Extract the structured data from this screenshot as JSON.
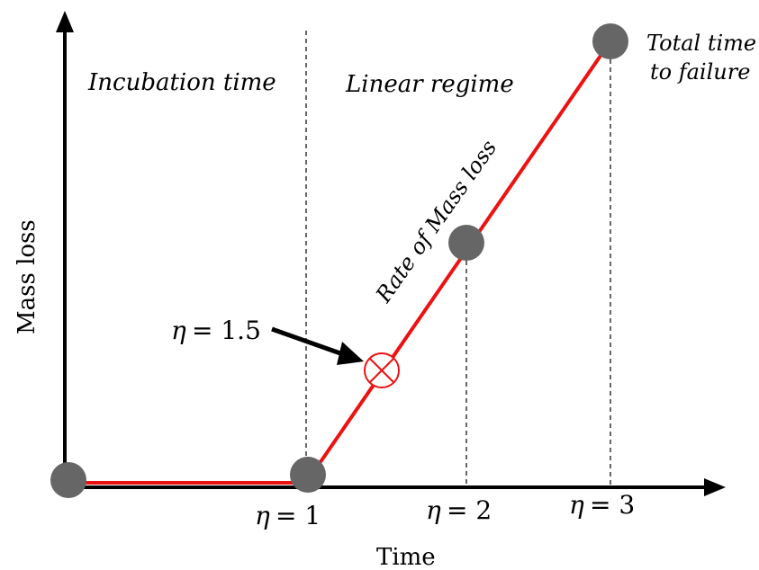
{
  "diagram": {
    "axes": {
      "x_label": "Time",
      "y_label": "Mass loss"
    },
    "regions": {
      "incubation": "Incubation time",
      "linear": "Linear regime",
      "total": [
        "Total time",
        "to failure"
      ]
    },
    "slope_label": "Rate of Mass loss",
    "eta_symbol": "η",
    "eta_ticks": [
      {
        "label": "= 1",
        "value": 1
      },
      {
        "label": "= 2",
        "value": 2
      },
      {
        "label": "= 3",
        "value": 3
      }
    ],
    "marker": {
      "symbol": "η",
      "label": "= 1.5",
      "value": 1.5
    },
    "colors": {
      "curve": "#ee1111",
      "point": "#666666",
      "marker": "#ee1111",
      "axis": "#000000"
    }
  }
}
